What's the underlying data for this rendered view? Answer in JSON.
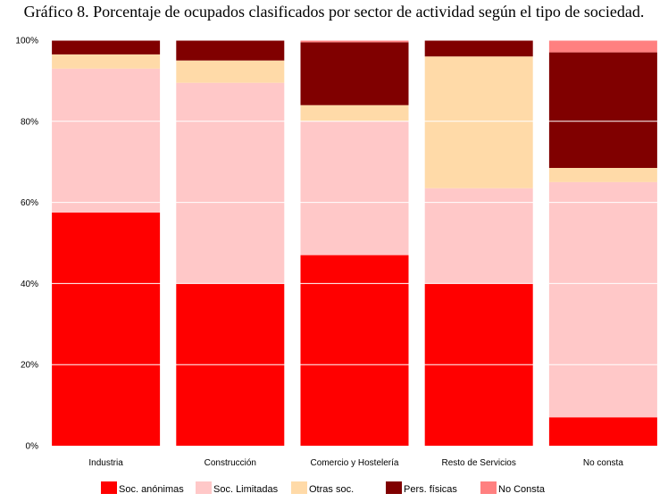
{
  "chart_data": {
    "type": "bar",
    "stacked": true,
    "normalized": true,
    "title": "Gráfico 8. Porcentaje de ocupados clasificados por sector de actividad según el tipo de sociedad.",
    "xlabel": "",
    "ylabel": "",
    "ylim": [
      0,
      100
    ],
    "y_ticks": [
      "0%",
      "20%",
      "40%",
      "60%",
      "80%",
      "100%"
    ],
    "grid": true,
    "legend_position": "bottom",
    "categories": [
      "Industria",
      "Construcción",
      "Comercio y Hostelería",
      "Resto de Servicios",
      "No consta"
    ],
    "series": [
      {
        "name": "Soc. anónimas",
        "color": "#ff0000",
        "values": [
          57.5,
          40.0,
          47.0,
          40.0,
          7.0
        ]
      },
      {
        "name": "Soc. Limitadas",
        "color": "#ffc8c8",
        "values": [
          35.5,
          49.5,
          33.0,
          23.5,
          58.0
        ]
      },
      {
        "name": "Otras soc.",
        "color": "#ffdaa8",
        "values": [
          3.5,
          5.5,
          4.0,
          32.5,
          3.5
        ]
      },
      {
        "name": "Pers. físicas",
        "color": "#800000",
        "values": [
          3.5,
          5.0,
          15.5,
          4.0,
          28.5
        ]
      },
      {
        "name": "No Consta",
        "color": "#ff8080",
        "values": [
          0.0,
          0.0,
          0.5,
          0.0,
          3.0
        ]
      }
    ]
  }
}
